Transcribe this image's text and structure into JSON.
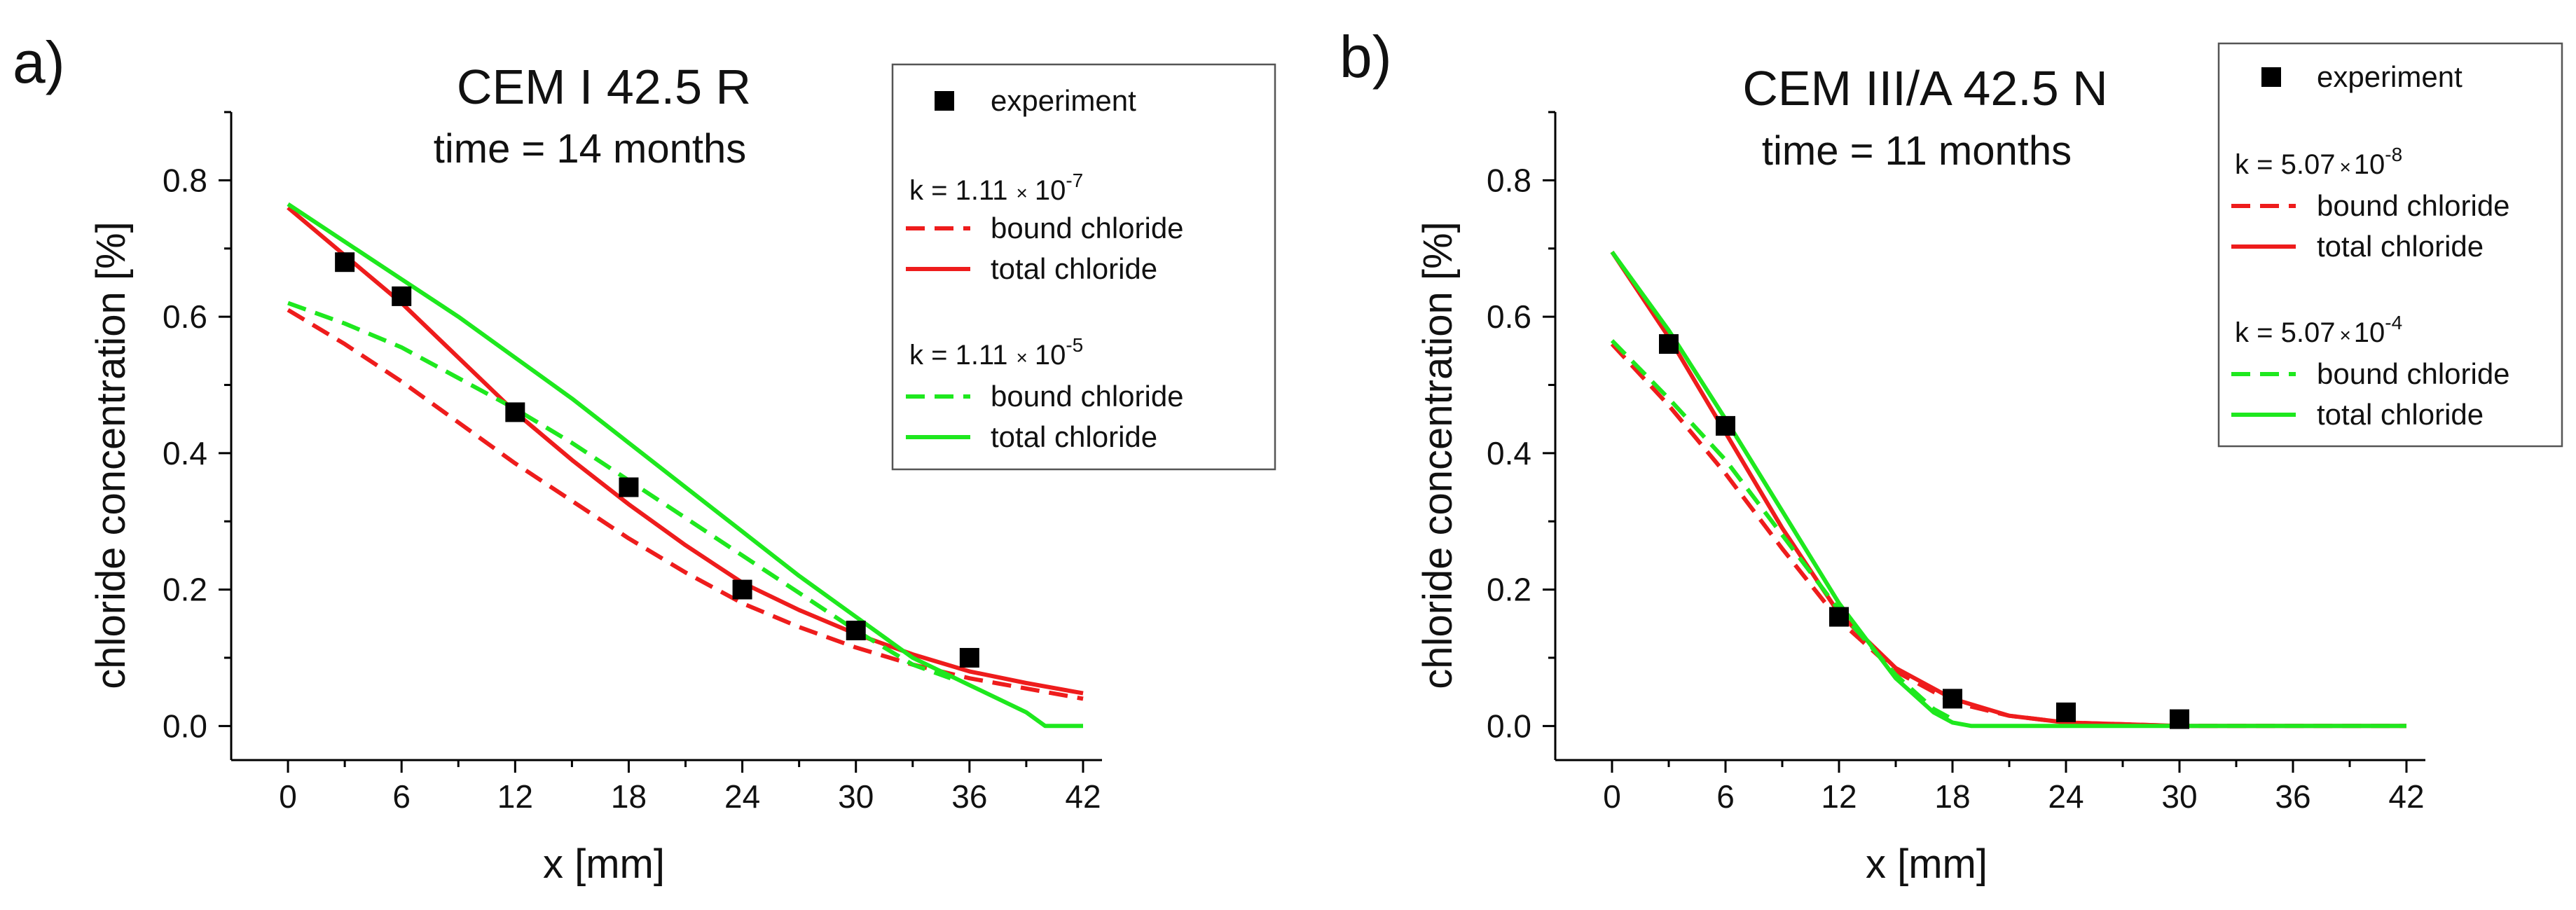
{
  "colors": {
    "red": "#ee1c1c",
    "green": "#1ee81e",
    "marker": "#000000",
    "axis": "#000000"
  },
  "chart_data": [
    {
      "type": "line",
      "panel_label": "a)",
      "title": "CEM I 42.5 R",
      "subtitle": "time = 14 months",
      "xlabel": "x [mm]",
      "ylabel": "chloride concentration [%]",
      "xlim": [
        -3,
        43
      ],
      "ylim": [
        -0.05,
        0.9
      ],
      "x_ticks": [
        0,
        6,
        12,
        18,
        24,
        30,
        36,
        42
      ],
      "x_tick_labels": [
        "0",
        "6",
        "12",
        "18",
        "24",
        "30",
        "36",
        "42"
      ],
      "y_ticks": [
        0.0,
        0.2,
        0.4,
        0.6,
        0.8
      ],
      "y_tick_labels": [
        "0.0",
        "0.2",
        "0.4",
        "0.6",
        "0.8"
      ],
      "grid": false,
      "legend": {
        "placement": "top-right",
        "experiment_label": "experiment",
        "groups": [
          {
            "k_base": "k = 1.11",
            "k_times": "×",
            "k_ten": "10",
            "k_exp": "-7",
            "bound_label": "bound chloride",
            "total_label": "total chloride",
            "color": "red"
          },
          {
            "k_base": "k = 1.11",
            "k_times": "×",
            "k_ten": "10",
            "k_exp": "-5",
            "bound_label": "bound chloride",
            "total_label": "total chloride",
            "color": "green"
          }
        ]
      },
      "experiment": {
        "name": "experiment",
        "x": [
          3,
          6,
          12,
          18,
          24,
          30,
          36
        ],
        "y": [
          0.68,
          0.63,
          0.46,
          0.35,
          0.2,
          0.14,
          0.1
        ]
      },
      "series": [
        {
          "name": "bound chloride (k = 1.11 × 10-7)",
          "color": "red",
          "dash": true,
          "x": [
            0,
            3,
            6,
            9,
            12,
            15,
            18,
            21,
            24,
            27,
            30,
            33,
            36,
            39,
            42
          ],
          "y": [
            0.61,
            0.56,
            0.505,
            0.445,
            0.385,
            0.33,
            0.275,
            0.225,
            0.18,
            0.145,
            0.115,
            0.09,
            0.07,
            0.055,
            0.04
          ]
        },
        {
          "name": "total chloride (k = 1.11 × 10-7)",
          "color": "red",
          "dash": false,
          "x": [
            0,
            3,
            6,
            9,
            12,
            15,
            18,
            21,
            24,
            27,
            30,
            33,
            36,
            39,
            42
          ],
          "y": [
            0.76,
            0.69,
            0.62,
            0.54,
            0.46,
            0.39,
            0.325,
            0.265,
            0.21,
            0.17,
            0.135,
            0.105,
            0.08,
            0.063,
            0.048
          ]
        },
        {
          "name": "bound chloride (k = 1.11 × 10-5)",
          "color": "green",
          "dash": true,
          "x": [
            0,
            3,
            6,
            9,
            12,
            15,
            18,
            21,
            24,
            27,
            30,
            33,
            35
          ],
          "y": [
            0.62,
            0.59,
            0.555,
            0.51,
            0.465,
            0.415,
            0.36,
            0.305,
            0.25,
            0.195,
            0.14,
            0.09,
            0.07
          ]
        },
        {
          "name": "total chloride (k = 1.11 × 10-5)",
          "color": "green",
          "dash": false,
          "x": [
            0,
            3,
            6,
            9,
            12,
            15,
            18,
            21,
            24,
            27,
            30,
            33,
            36,
            39,
            40,
            42
          ],
          "y": [
            0.765,
            0.71,
            0.655,
            0.6,
            0.54,
            0.48,
            0.415,
            0.35,
            0.285,
            0.22,
            0.16,
            0.1,
            0.06,
            0.02,
            0.0,
            0.0
          ]
        }
      ]
    },
    {
      "type": "line",
      "panel_label": "b)",
      "title": "CEM III/A 42.5 N",
      "subtitle": "time = 11 months",
      "xlabel": "x [mm]",
      "ylabel": "chloride concentration [%]",
      "xlim": [
        -3,
        43
      ],
      "ylim": [
        -0.05,
        0.9
      ],
      "x_ticks": [
        0,
        6,
        12,
        18,
        24,
        30,
        36,
        42
      ],
      "x_tick_labels": [
        "0",
        "6",
        "12",
        "18",
        "24",
        "30",
        "36",
        "42"
      ],
      "y_ticks": [
        0.0,
        0.2,
        0.4,
        0.6,
        0.8
      ],
      "y_tick_labels": [
        "0.0",
        "0.2",
        "0.4",
        "0.6",
        "0.8"
      ],
      "grid": false,
      "legend": {
        "placement": "top-right",
        "experiment_label": "experiment",
        "groups": [
          {
            "k_base": "k = 5.07",
            "k_times": "×",
            "k_ten": "10",
            "k_exp": "-8",
            "bound_label": "bound chloride",
            "total_label": "total chloride",
            "color": "red"
          },
          {
            "k_base": "k = 5.07",
            "k_times": "×",
            "k_ten": "10",
            "k_exp": "-4",
            "bound_label": "bound chloride",
            "total_label": "total chloride",
            "color": "green"
          }
        ]
      },
      "experiment": {
        "name": "experiment",
        "x": [
          3,
          6,
          12,
          18,
          24,
          30
        ],
        "y": [
          0.56,
          0.44,
          0.16,
          0.04,
          0.02,
          0.01
        ]
      },
      "series": [
        {
          "name": "bound chloride (k = 5.07 × 10-8)",
          "color": "red",
          "dash": true,
          "x": [
            0,
            3,
            6,
            9,
            12,
            15,
            18,
            21,
            24,
            30,
            36,
            42
          ],
          "y": [
            0.56,
            0.47,
            0.37,
            0.26,
            0.155,
            0.08,
            0.035,
            0.015,
            0.005,
            0.0,
            0.0,
            0.0
          ]
        },
        {
          "name": "total chloride (k = 5.07 × 10-8)",
          "color": "red",
          "dash": false,
          "x": [
            0,
            3,
            6,
            9,
            12,
            15,
            18,
            21,
            24,
            30,
            36,
            42
          ],
          "y": [
            0.695,
            0.57,
            0.43,
            0.29,
            0.165,
            0.085,
            0.04,
            0.015,
            0.005,
            0.0,
            0.0,
            0.0
          ]
        },
        {
          "name": "bound chloride (k = 5.07 × 10-4)",
          "color": "green",
          "dash": true,
          "x": [
            0,
            3,
            6,
            9,
            12,
            15,
            17,
            18
          ],
          "y": [
            0.565,
            0.48,
            0.39,
            0.28,
            0.17,
            0.075,
            0.025,
            0.01
          ]
        },
        {
          "name": "total chloride (k = 5.07 × 10-4)",
          "color": "green",
          "dash": false,
          "x": [
            0,
            3,
            6,
            9,
            12,
            15,
            17,
            18,
            19,
            42
          ],
          "y": [
            0.695,
            0.58,
            0.45,
            0.315,
            0.18,
            0.07,
            0.02,
            0.005,
            0.0,
            0.0
          ]
        }
      ]
    }
  ]
}
